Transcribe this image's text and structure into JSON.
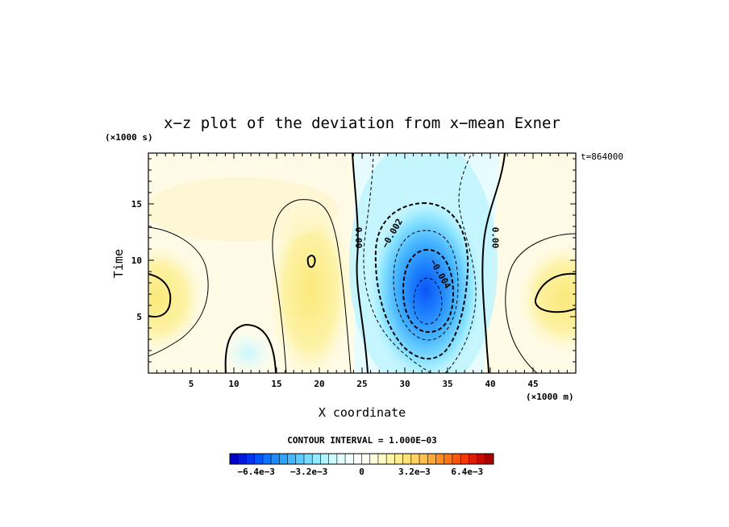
{
  "chart_data": {
    "type": "heatmap",
    "title": "x−z plot of the deviation from x−mean Exner",
    "xlabel": "X coordinate",
    "ylabel": "Time",
    "x_unit": "(×1000 m)",
    "y_unit": "(×1000 s)",
    "time_stamp": "t=864000",
    "xlim": [
      0,
      50
    ],
    "ylim": [
      0,
      19.5
    ],
    "x_ticks": [
      5,
      10,
      15,
      20,
      25,
      30,
      35,
      40,
      45
    ],
    "y_ticks": [
      5,
      10,
      15
    ],
    "contour_interval_text": "CONTOUR INTERVAL = 1.000E−03",
    "contour_labels": [
      {
        "text": "0.00",
        "x": 24.6,
        "y": 12.0
      },
      {
        "text": "−0.002",
        "x": 28.5,
        "y": 12.4
      },
      {
        "text": "−0.004",
        "x": 34.2,
        "y": 8.8
      },
      {
        "text": "0.00",
        "x": 40.6,
        "y": 12.0
      }
    ],
    "features": [
      {
        "name": "negative-core",
        "x": 32.5,
        "y": 6.8,
        "value": -0.0055
      },
      {
        "name": "weak-negative",
        "x": 11.5,
        "y": 2.5,
        "value": -0.0006
      },
      {
        "name": "positive-left",
        "x": 1.5,
        "y": 7.0,
        "value": 0.0012
      },
      {
        "name": "positive-right",
        "x": 48.5,
        "y": 7.0,
        "value": 0.0012
      },
      {
        "name": "positive-mid",
        "x": 19.5,
        "y": 9.0,
        "value": 0.0009
      }
    ],
    "colorbar": {
      "min": -0.008,
      "max": 0.008,
      "tick_labels": [
        "−6.4e−3",
        "−3.2e−3",
        "0",
        "3.2e−3",
        "6.4e−3"
      ],
      "tick_values": [
        -0.0064,
        -0.0032,
        0,
        0.0032,
        0.0064
      ],
      "colors": [
        "#0000c8",
        "#0018e0",
        "#0034f0",
        "#0055ff",
        "#0d72ff",
        "#1e8cff",
        "#2fa3ff",
        "#45b8ff",
        "#5ecbff",
        "#78dcff",
        "#94eaff",
        "#b1f4ff",
        "#cbfaff",
        "#e2fdff",
        "#f4ffff",
        "#ffffff",
        "#fffff4",
        "#ffffdd",
        "#fffcc4",
        "#fff6aa",
        "#ffee91",
        "#ffe27a",
        "#ffd362",
        "#ffc04b",
        "#ffaa36",
        "#ff9024",
        "#ff7416",
        "#ff560c",
        "#f53805",
        "#e01e02",
        "#c80a00",
        "#aa0000"
      ]
    }
  }
}
